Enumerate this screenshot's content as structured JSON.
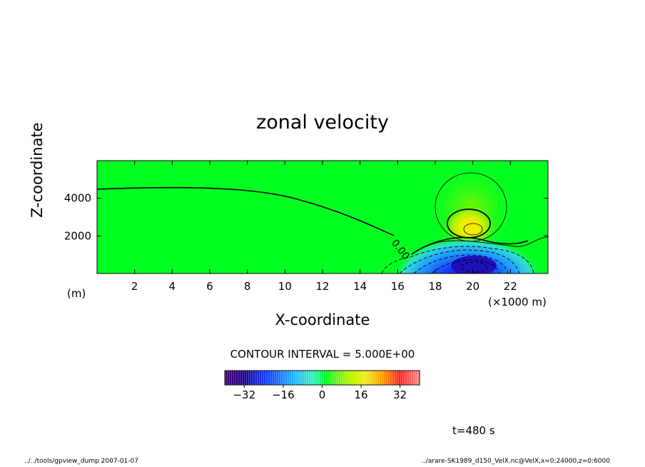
{
  "chart_data": {
    "type": "heatmap",
    "title": "zonal velocity",
    "xlabel": "X-coordinate",
    "ylabel": "Z-coordinate",
    "x_unit_note": "(×1000 m)",
    "y_unit_note": "(m)",
    "xlim": [
      0,
      24
    ],
    "ylim": [
      0,
      6000
    ],
    "x_ticks": [
      "2",
      "4",
      "6",
      "8",
      "10",
      "12",
      "14",
      "16",
      "18",
      "20",
      "22"
    ],
    "y_ticks": [
      "2000",
      "4000"
    ],
    "y_tick_values": [
      2000,
      4000
    ],
    "contour_interval": "CONTOUR INTERVAL = 5.000E+00",
    "zero_contour_label": "0.00",
    "colorbar": {
      "min": -40,
      "max": 40,
      "ticks": [
        "-32",
        "-16",
        "0",
        "16",
        "32"
      ],
      "tick_values": [
        -32,
        -16,
        0,
        16,
        32
      ]
    },
    "features": [
      {
        "kind": "positive maximum",
        "x": 19.8,
        "z": 2300,
        "value": 15
      },
      {
        "kind": "negative minimum",
        "x": 19.9,
        "z": 500,
        "value": -38
      },
      {
        "kind": "zero contour level",
        "x_range": [
          0,
          15
        ],
        "z": 4450
      }
    ]
  },
  "time_label": "t=480 s",
  "footer": {
    "left": "../../tools/gpview_dump  2007-01-07",
    "right": "../arare-SK1989_d150_VelX.nc@VelX,x=0:24000,z=0:6000"
  }
}
